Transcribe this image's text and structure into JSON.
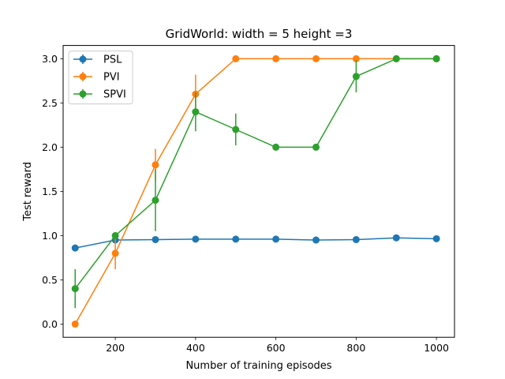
{
  "chart_data": {
    "type": "line",
    "title": "GridWorld: width = 5 height =3",
    "xlabel": "Number of training episodes",
    "ylabel": "Test reward",
    "xlim": [
      70,
      1045
    ],
    "ylim": [
      -0.15,
      3.15
    ],
    "xticks": [
      200,
      400,
      600,
      800,
      1000
    ],
    "yticks": [
      0.0,
      0.5,
      1.0,
      1.5,
      2.0,
      2.5,
      3.0
    ],
    "xtick_labels": [
      "200",
      "400",
      "600",
      "800",
      "1000"
    ],
    "ytick_labels": [
      "0.0",
      "0.5",
      "1.0",
      "1.5",
      "2.0",
      "2.5",
      "3.0"
    ],
    "grid": false,
    "legend_position": "top-left",
    "x": [
      100,
      200,
      300,
      400,
      500,
      600,
      700,
      800,
      900,
      1000
    ],
    "series": [
      {
        "name": "PSL",
        "color": "#1f77b4",
        "values": [
          0.86,
          0.95,
          0.955,
          0.96,
          0.96,
          0.96,
          0.95,
          0.955,
          0.975,
          0.965
        ],
        "errors": [
          0.04,
          0.01,
          0.01,
          0.01,
          0.01,
          0.01,
          0.01,
          0.01,
          0.01,
          0.01
        ]
      },
      {
        "name": "PVI",
        "color": "#ff7f0e",
        "values": [
          0.0,
          0.8,
          1.8,
          2.6,
          3.0,
          3.0,
          3.0,
          3.0,
          3.0,
          3.0
        ],
        "errors": [
          0.0,
          0.18,
          0.18,
          0.22,
          0.0,
          0.0,
          0.0,
          0.0,
          0.0,
          0.0
        ]
      },
      {
        "name": "SPVI",
        "color": "#2ca02c",
        "values": [
          0.4,
          1.0,
          1.4,
          2.4,
          2.2,
          2.0,
          2.0,
          2.8,
          3.0,
          3.0
        ],
        "errors": [
          0.22,
          0.0,
          0.35,
          0.22,
          0.18,
          0.0,
          0.0,
          0.18,
          0.0,
          0.0
        ]
      }
    ]
  }
}
